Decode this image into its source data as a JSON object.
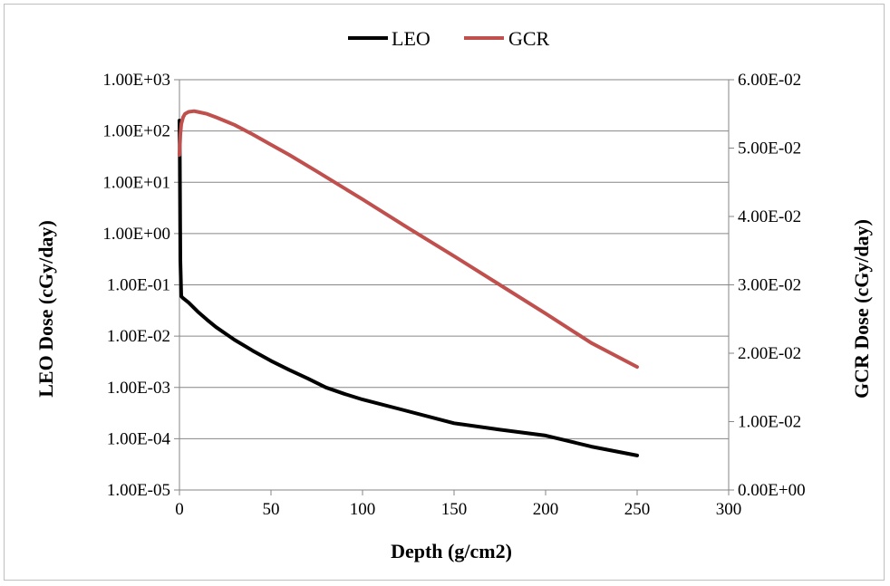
{
  "chart_data": {
    "type": "line",
    "title": "",
    "xlabel": "Depth (g/cm2)",
    "ylabel_left": "LEO Dose (cGy/day)",
    "ylabel_right": "GCR Dose (cGy/day)",
    "xlim": [
      0,
      300
    ],
    "xticks": [
      "0",
      "50",
      "100",
      "150",
      "200",
      "250",
      "300"
    ],
    "y_left_scale": "log",
    "y_left_lim": [
      1e-05,
      1000
    ],
    "y_left_ticks": [
      "1.00E-05",
      "1.00E-04",
      "1.00E-03",
      "1.00E-02",
      "1.00E-01",
      "1.00E+00",
      "1.00E+01",
      "1.00E+02",
      "1.00E+03"
    ],
    "y_right_scale": "linear",
    "y_right_lim": [
      0,
      0.06
    ],
    "y_right_ticks": [
      "0.00E+00",
      "1.00E-02",
      "2.00E-02",
      "3.00E-02",
      "4.00E-02",
      "5.00E-02",
      "6.00E-02"
    ],
    "grid": "horizontal",
    "legend_position": "top",
    "series": [
      {
        "name": "LEO",
        "color": "#000000",
        "axis": "left",
        "x": [
          0,
          0.2,
          0.5,
          1,
          2,
          5,
          10,
          15,
          20,
          30,
          40,
          50,
          60,
          70,
          80,
          90,
          100,
          120,
          150,
          175,
          200,
          225,
          250
        ],
        "y": [
          160,
          30,
          0.3,
          0.06,
          0.055,
          0.045,
          0.03,
          0.021,
          0.015,
          0.0085,
          0.0052,
          0.0033,
          0.0022,
          0.0015,
          0.001,
          0.00075,
          0.00058,
          0.00038,
          0.0002,
          0.00015,
          0.000115,
          7e-05,
          4.7e-05
        ]
      },
      {
        "name": "GCR",
        "color": "#c0504d",
        "axis": "right",
        "x": [
          0,
          0.5,
          1,
          2,
          3,
          5,
          8,
          10,
          15,
          20,
          30,
          40,
          50,
          60,
          75,
          100,
          125,
          150,
          175,
          200,
          225,
          250
        ],
        "y": [
          0.049,
          0.052,
          0.0535,
          0.0545,
          0.055,
          0.0553,
          0.0554,
          0.0553,
          0.055,
          0.0545,
          0.0534,
          0.052,
          0.0505,
          0.049,
          0.0466,
          0.0425,
          0.0383,
          0.0342,
          0.03,
          0.0258,
          0.0215,
          0.018
        ]
      }
    ]
  }
}
